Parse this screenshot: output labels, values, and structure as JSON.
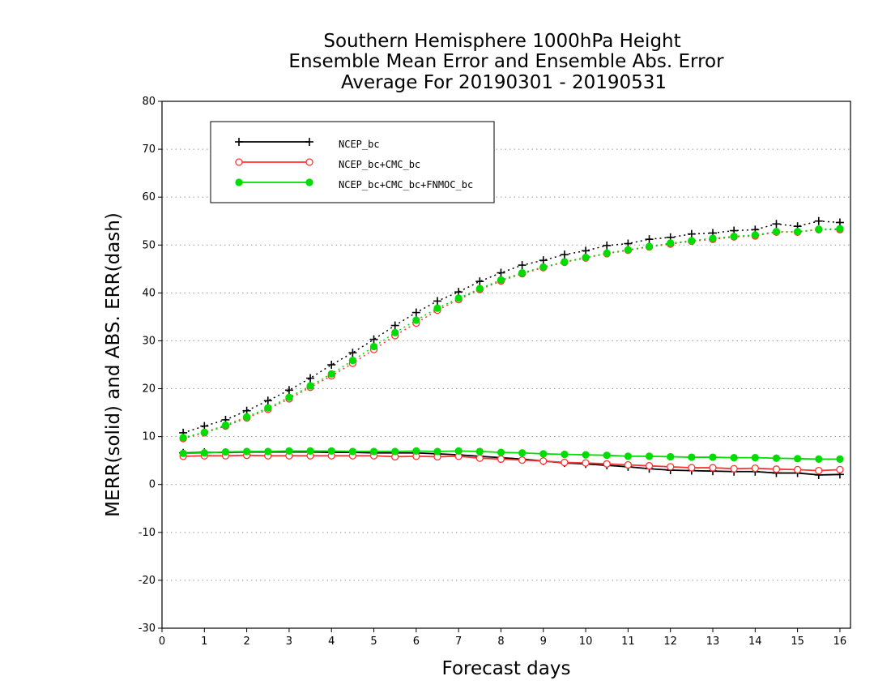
{
  "chart_data": {
    "type": "line",
    "title": [
      "Southern Hemisphere 1000hPa Height",
      "Ensemble Mean Error and Ensemble Abs. Error",
      "Average For 20190301 - 20190531"
    ],
    "xlabel": "Forecast days",
    "ylabel": "MERR(solid) and ABS. ERR(dash)",
    "xlim": [
      0,
      16.25
    ],
    "ylim": [
      -30,
      80
    ],
    "xticks": [
      0,
      1,
      2,
      3,
      4,
      5,
      6,
      7,
      8,
      9,
      10,
      11,
      12,
      13,
      14,
      15,
      16
    ],
    "yticks": [
      -30,
      -20,
      -10,
      0,
      10,
      20,
      30,
      40,
      50,
      60,
      70,
      80
    ],
    "grid": "horizontal dotted",
    "legend_position": "top-left",
    "x": [
      0.5,
      1,
      1.5,
      2,
      2.5,
      3,
      3.5,
      4,
      4.5,
      5,
      5.5,
      6,
      6.5,
      7,
      7.5,
      8,
      8.5,
      9,
      9.5,
      10,
      10.5,
      11,
      11.5,
      12,
      12.5,
      13,
      13.5,
      14,
      14.5,
      15,
      15.5,
      16
    ],
    "series": [
      {
        "name": "NCEP_bc",
        "color": "#000000",
        "marker": "plus",
        "abs_err": [
          10.8,
          12.2,
          13.5,
          15.4,
          17.5,
          19.7,
          22.2,
          25.0,
          27.5,
          30.3,
          33.2,
          35.9,
          38.3,
          40.2,
          42.4,
          44.2,
          45.8,
          46.8,
          48.0,
          48.8,
          49.9,
          50.3,
          51.2,
          51.6,
          52.3,
          52.5,
          53.0,
          53.2,
          54.4,
          53.9,
          55.0,
          54.7
        ],
        "mean_err": [
          6.6,
          6.7,
          6.7,
          6.8,
          6.8,
          6.8,
          6.8,
          6.7,
          6.7,
          6.6,
          6.6,
          6.6,
          6.4,
          6.2,
          5.9,
          5.6,
          5.3,
          4.9,
          4.5,
          4.3,
          4.0,
          3.7,
          3.3,
          3.0,
          2.9,
          2.8,
          2.7,
          2.7,
          2.4,
          2.4,
          2.0,
          2.1
        ]
      },
      {
        "name": "NCEP_bc+CMC_bc",
        "color": "#ff3333",
        "marker": "open-circle",
        "abs_err": [
          9.6,
          10.8,
          12.2,
          13.9,
          15.7,
          17.9,
          20.3,
          22.7,
          25.3,
          28.2,
          31.1,
          33.7,
          36.4,
          38.6,
          40.7,
          42.5,
          44.0,
          45.3,
          46.4,
          47.3,
          48.2,
          48.9,
          49.6,
          50.2,
          50.8,
          51.2,
          51.7,
          51.9,
          52.7,
          52.7,
          53.2,
          53.2
        ],
        "mean_err": [
          5.9,
          6.0,
          6.0,
          6.1,
          6.0,
          6.0,
          6.0,
          6.0,
          6.0,
          6.0,
          5.8,
          5.9,
          5.8,
          5.9,
          5.5,
          5.3,
          5.1,
          4.9,
          4.6,
          4.5,
          4.3,
          4.1,
          3.9,
          3.7,
          3.5,
          3.5,
          3.3,
          3.4,
          3.2,
          3.1,
          2.9,
          3.1
        ]
      },
      {
        "name": "NCEP_bc+CMC_bc+FNMOC_bc",
        "color": "#00dd00",
        "marker": "filled-circle",
        "abs_err": [
          9.8,
          10.9,
          12.4,
          14.1,
          16.0,
          18.2,
          20.6,
          23.1,
          25.9,
          28.8,
          31.7,
          34.3,
          36.8,
          38.9,
          40.9,
          42.7,
          44.2,
          45.4,
          46.5,
          47.4,
          48.3,
          49.0,
          49.7,
          50.4,
          50.9,
          51.4,
          51.8,
          52.1,
          52.8,
          52.8,
          53.3,
          53.4
        ],
        "mean_err": [
          6.5,
          6.6,
          6.8,
          6.9,
          6.9,
          7.0,
          7.0,
          7.0,
          6.9,
          6.9,
          6.9,
          7.0,
          6.9,
          7.0,
          6.9,
          6.7,
          6.6,
          6.4,
          6.3,
          6.2,
          6.1,
          5.9,
          5.9,
          5.8,
          5.7,
          5.7,
          5.6,
          5.6,
          5.5,
          5.4,
          5.3,
          5.3
        ]
      }
    ]
  }
}
